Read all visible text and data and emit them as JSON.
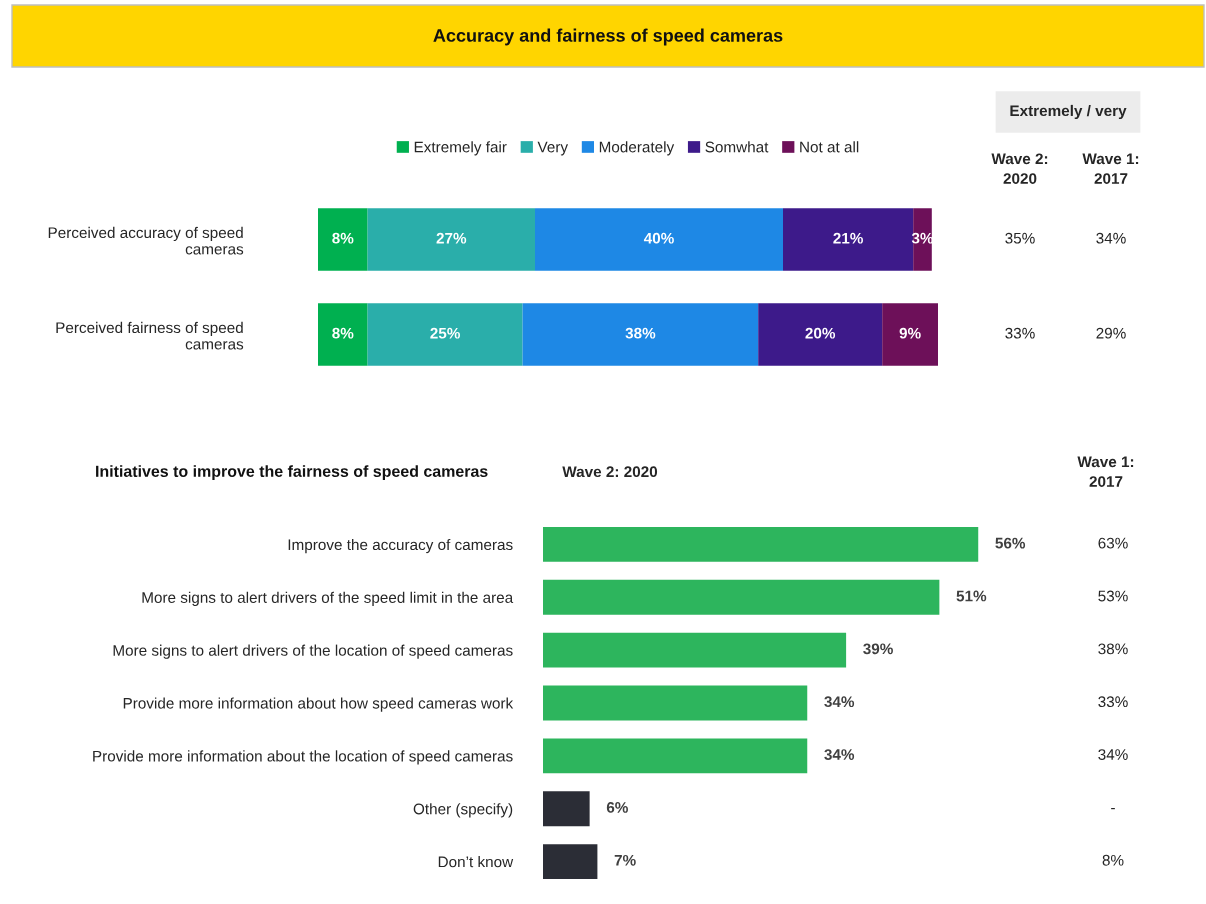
{
  "chart_data": [
    {
      "type": "bar",
      "orientation": "horizontal",
      "stacked": true,
      "title": "Accuracy and fairness of speed cameras",
      "categories": [
        "Perceived accuracy of speed cameras",
        "Perceived fairness of speed cameras"
      ],
      "series": [
        {
          "name": "Extremely fair",
          "color": "#00b050",
          "values": [
            8,
            8
          ],
          "value_labels": [
            "8%",
            "8%"
          ]
        },
        {
          "name": "Very",
          "color": "#2aaeaa",
          "values": [
            27,
            25
          ],
          "value_labels": [
            "27%",
            "25%"
          ]
        },
        {
          "name": "Moderately",
          "color": "#1e88e5",
          "values": [
            40,
            38
          ],
          "value_labels": [
            "40%",
            "38%"
          ]
        },
        {
          "name": "Somwhat",
          "color": "#3d1a8a",
          "values": [
            21,
            20
          ],
          "value_labels": [
            "21%",
            "20%"
          ]
        },
        {
          "name": "Not at all",
          "color": "#6d1059",
          "values": [
            3,
            9
          ],
          "value_labels": [
            "3%",
            "9%"
          ]
        }
      ],
      "xlim": [
        0,
        100
      ],
      "tick_labels": false,
      "legend": "top",
      "annotations": [
        "Extremely / very",
        "Wave 2:\n2020",
        "Wave 1:\n2017",
        "35%",
        "34%",
        "33%",
        "29%"
      ]
    },
    {
      "type": "bar",
      "orientation": "horizontal",
      "title": "Initiatives to improve the fairness of speed cameras",
      "subtitle": "Wave 2: 2020",
      "categories": [
        "Improve the accuracy of cameras",
        "More signs to alert drivers of the speed limit in the area",
        "More signs to alert drivers of the location of speed cameras",
        "Provide more information about how speed cameras work",
        "Provide more information about the location of speed cameras",
        "Other (specify)",
        "Don’t know"
      ],
      "values": [
        56,
        51,
        39,
        34,
        34,
        6,
        7
      ],
      "value_labels": [
        "56%",
        "51%",
        "39%",
        "34%",
        "34%",
        "6%",
        "7%"
      ],
      "colors": [
        "#2db55d",
        "#2db55d",
        "#2db55d",
        "#2db55d",
        "#2db55d",
        "#2b2d36",
        "#2b2d36"
      ],
      "tick_labels": false,
      "annotations": [
        "Wave 1:\n2017",
        "63%",
        "53%",
        "38%",
        "33%",
        "34%",
        "-",
        "8%"
      ]
    }
  ]
}
